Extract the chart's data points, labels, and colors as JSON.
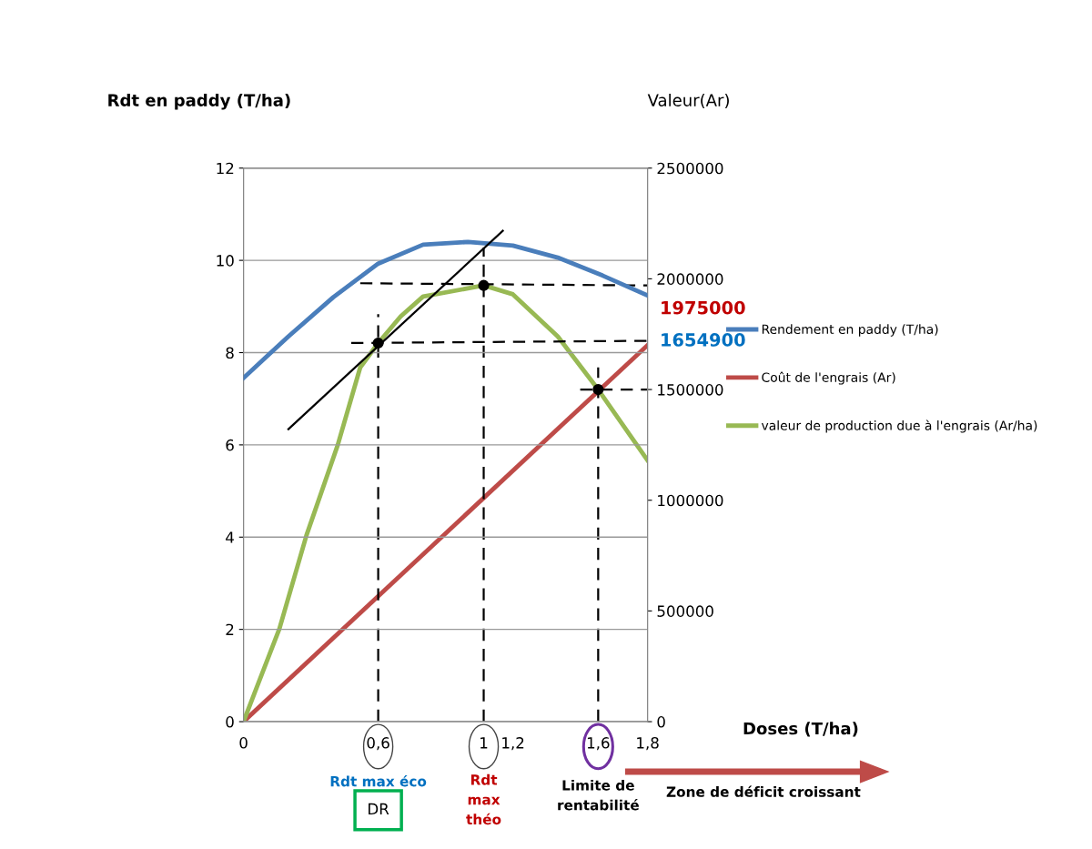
{
  "chart_data": {
    "type": "line",
    "xlabel": "Doses (T/ha)",
    "ylabel": "Rdt en paddy (T/ha)",
    "y2label": "Valeur(Ar)",
    "xlim": [
      0,
      1.8
    ],
    "xticks": [
      0,
      {
        "value": 0.6,
        "label": "0,6"
      },
      {
        "value": 1.07,
        "label": "1"
      },
      {
        "value": 1.2,
        "label": "1,2"
      },
      {
        "value": 1.58,
        "label": "1,6"
      },
      {
        "value": 1.8,
        "label": "1,8"
      }
    ],
    "ylim": [
      0,
      12
    ],
    "yticks": [
      0,
      2,
      4,
      6,
      8,
      10,
      12
    ],
    "y2lim": [
      0,
      2500000
    ],
    "y2ticks": [
      0,
      500000,
      1000000,
      1500000,
      2000000,
      2500000
    ],
    "grid": "y",
    "legend": "right",
    "marker": "none",
    "line_style": "solid",
    "series": [
      {
        "name": "Rendement en paddy (T/ha)",
        "color": "#4a7ebb",
        "x": [
          0,
          0.1,
          0.2,
          0.4,
          0.6,
          0.8,
          1.0,
          1.2,
          1.4,
          1.6,
          1.8
        ],
        "values": [
          7.45,
          7.9,
          8.35,
          9.2,
          9.93,
          10.34,
          10.4,
          10.32,
          10.06,
          9.67,
          9.24
        ]
      },
      {
        "name": "Coût de l'engrais (Ar)",
        "color": "#be4b48",
        "axis": "y2",
        "x": [
          0,
          1.8
        ],
        "values": [
          0,
          1700000
        ]
      },
      {
        "name": "valeur de production due à l'engrais (Ar/ha)",
        "color": "#98b954",
        "axis": "y2",
        "x": [
          0,
          0.16,
          0.28,
          0.42,
          0.52,
          0.6,
          0.7,
          0.8,
          1.07,
          1.2,
          1.4,
          1.58,
          1.8
        ],
        "values": [
          0,
          420000,
          840000,
          1250000,
          1600000,
          1710000,
          1830000,
          1920000,
          1970000,
          1930000,
          1740000,
          1500000,
          1180000
        ]
      },
      {
        "color": "#000000",
        "x": [
          0.2,
          1.155
        ],
        "values": [
          6.34,
          10.64
        ]
      },
      {
        "color": "#000000",
        "axis": "y2",
        "line_style": "dashed",
        "x": [
          0.6,
          0.6
        ],
        "values": [
          0,
          1840000
        ]
      },
      {
        "color": "#000000",
        "axis": "y2",
        "line_style": "dashed",
        "x": [
          1.07,
          1.07
        ],
        "values": [
          0,
          2140000
        ]
      },
      {
        "color": "#000000",
        "axis": "y2",
        "line_style": "dashed",
        "x": [
          1.58,
          1.58
        ],
        "values": [
          0,
          1600000
        ]
      },
      {
        "color": "#000000",
        "axis": "y2",
        "line_style": "dashed",
        "x": [
          0.52,
          1.8
        ],
        "values": [
          1980000,
          1970000
        ]
      },
      {
        "color": "#000000",
        "axis": "y2",
        "line_style": "dashed",
        "x": [
          0.48,
          1.8
        ],
        "values": [
          1710000,
          1720000
        ]
      },
      {
        "color": "#000000",
        "axis": "y2",
        "line_style": "dashed",
        "x": [
          1.5,
          1.8
        ],
        "values": [
          1500000,
          1500000
        ]
      },
      {
        "type": "scatter",
        "marker": "circle",
        "color": "#000000",
        "axis": "y2",
        "x": [
          0.6,
          1.07,
          1.58
        ],
        "values": [
          1710000,
          1970000,
          1500000
        ]
      }
    ],
    "annotations": [
      "1975000",
      "1654900",
      "Rdt max éco",
      "DR",
      "Rdt\nmax\nthéo",
      "Limite de\nrentabilité",
      "Zone de déficit croissant"
    ]
  }
}
